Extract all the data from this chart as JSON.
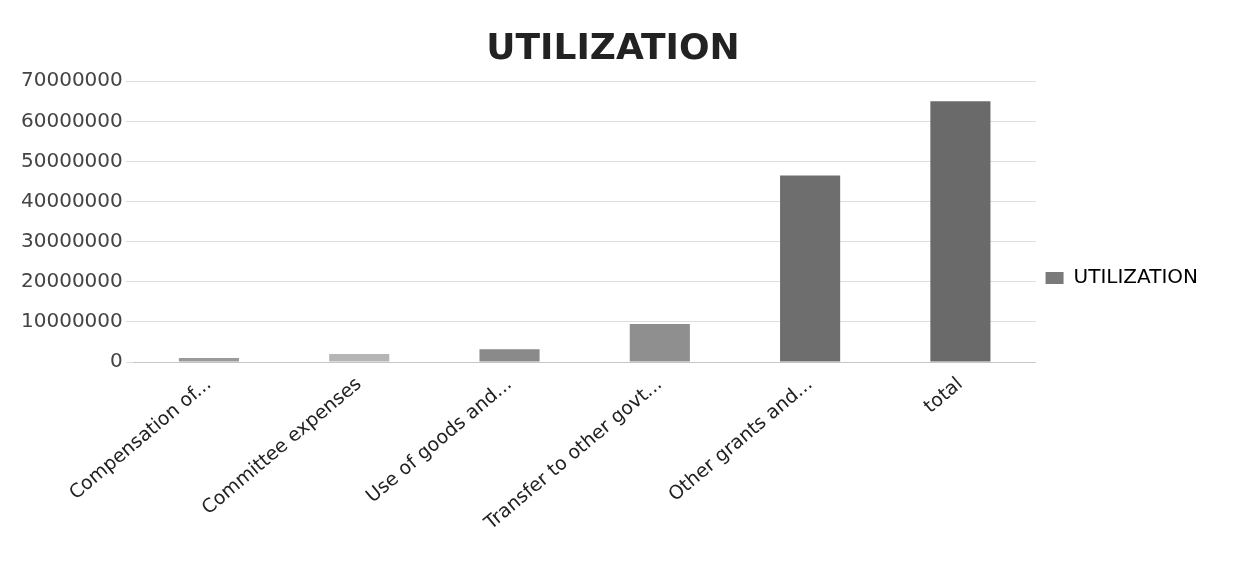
{
  "chart_data": {
    "type": "bar",
    "title": "UTILIZATION",
    "categories": [
      "Compensation of...",
      "Committee expenses",
      "Use of goods and...",
      "Transfer to other govt...",
      "Other grants and...",
      "total"
    ],
    "series": [
      {
        "name": "UTILIZATION",
        "color": "#7a7a7a",
        "colors": [
          "#9a9a9a",
          "#b5b5b5",
          "#8a8a8a",
          "#8f8f8f",
          "#6e6e6e",
          "#6a6a6a"
        ],
        "values": [
          1000000,
          2000000,
          3200000,
          9500000,
          46500000,
          65000000
        ]
      }
    ],
    "ylim": [
      0,
      70000000
    ],
    "yticks": [
      0,
      10000000,
      20000000,
      30000000,
      40000000,
      50000000,
      60000000,
      70000000
    ],
    "grid": "y",
    "legend": "right"
  }
}
